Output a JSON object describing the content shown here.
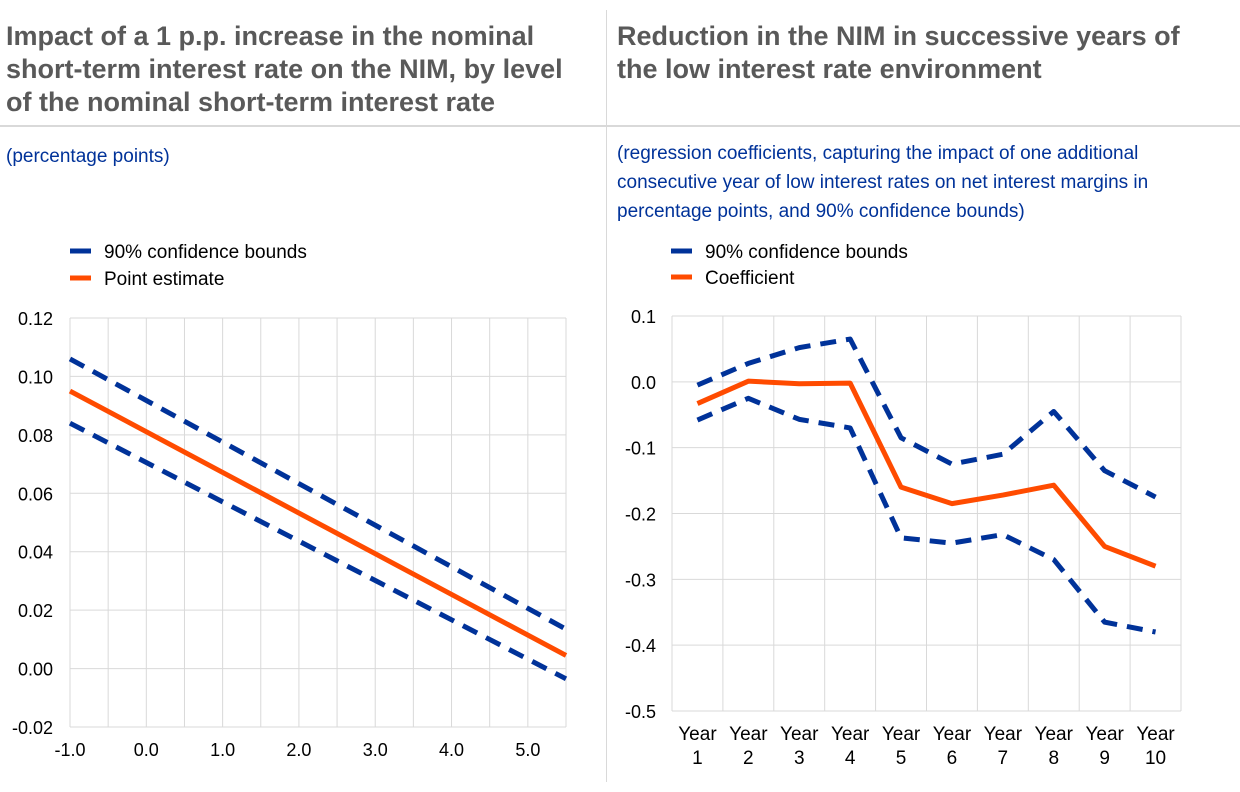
{
  "left_panel": {
    "title": "Impact of a 1 p.p. increase in the nominal short-term interest rate on the NIM, by level of the nominal short-term interest rate",
    "subtitle": "(percentage points)"
  },
  "right_panel": {
    "title": "Reduction in the NIM in successive years of the low interest rate environment",
    "subtitle": "(regression coefficients, capturing the impact of one additional consecutive year of low interest rates on net interest margins in percentage points, and 90% confidence bounds)"
  },
  "colors": {
    "bounds": "#003299",
    "estimate": "#ff4b00",
    "grid": "#d9d9d9"
  },
  "chart_data": [
    {
      "type": "line",
      "xlim": [
        -1.0,
        5.5
      ],
      "ylim": [
        -0.02,
        0.12
      ],
      "x_ticks": [
        "-1.0",
        "0.0",
        "1.0",
        "2.0",
        "3.0",
        "4.0",
        "5.0"
      ],
      "x_tick_values": [
        -1,
        0,
        1,
        2,
        3,
        4,
        5
      ],
      "y_ticks": [
        "0.12",
        "0.10",
        "0.08",
        "0.06",
        "0.04",
        "0.02",
        "0.00",
        "-0.02"
      ],
      "y_tick_values": [
        0.12,
        0.1,
        0.08,
        0.06,
        0.04,
        0.02,
        0.0,
        -0.02
      ],
      "x_gridlines": [
        -1,
        -0.5,
        0,
        0.5,
        1,
        1.5,
        2,
        2.5,
        3,
        3.5,
        4,
        4.5,
        5,
        5.5
      ],
      "grid": true,
      "legend": [
        "90% confidence bounds",
        "Point estimate"
      ],
      "series": [
        {
          "name": "90% confidence bounds",
          "style": "dashed",
          "color": "#003299",
          "x": [
            -1.0,
            5.5
          ],
          "y": [
            0.106,
            0.0135
          ]
        },
        {
          "name": "90% confidence bounds",
          "style": "dashed",
          "color": "#003299",
          "x": [
            -1.0,
            5.5
          ],
          "y": [
            0.084,
            -0.0035
          ]
        },
        {
          "name": "Point estimate",
          "style": "solid",
          "color": "#ff4b00",
          "x": [
            -1.0,
            5.5
          ],
          "y": [
            0.095,
            0.0045
          ]
        }
      ]
    },
    {
      "type": "line",
      "categories": [
        [
          "Year",
          "1"
        ],
        [
          "Year",
          "2"
        ],
        [
          "Year",
          "3"
        ],
        [
          "Year",
          "4"
        ],
        [
          "Year",
          "5"
        ],
        [
          "Year",
          "6"
        ],
        [
          "Year",
          "7"
        ],
        [
          "Year",
          "8"
        ],
        [
          "Year",
          "9"
        ],
        [
          "Year",
          "10"
        ]
      ],
      "ylim": [
        -0.5,
        0.1
      ],
      "y_ticks": [
        "0.1",
        "0.0",
        "-0.1",
        "-0.2",
        "-0.3",
        "-0.4",
        "-0.5"
      ],
      "y_tick_values": [
        0.1,
        0.0,
        -0.1,
        -0.2,
        -0.3,
        -0.4,
        -0.5
      ],
      "grid": true,
      "legend": [
        "90% confidence bounds",
        "Coefficient"
      ],
      "series": [
        {
          "name": "90% confidence bounds",
          "style": "dashed",
          "color": "#003299",
          "values": [
            -0.005,
            0.028,
            0.052,
            0.065,
            -0.085,
            -0.125,
            -0.11,
            -0.045,
            -0.135,
            -0.175
          ]
        },
        {
          "name": "90% confidence bounds",
          "style": "dashed",
          "color": "#003299",
          "values": [
            -0.058,
            -0.025,
            -0.057,
            -0.07,
            -0.237,
            -0.245,
            -0.232,
            -0.27,
            -0.365,
            -0.38
          ]
        },
        {
          "name": "Coefficient",
          "style": "solid",
          "color": "#ff4b00",
          "values": [
            -0.033,
            0.001,
            -0.003,
            -0.002,
            -0.16,
            -0.185,
            -0.172,
            -0.157,
            -0.25,
            -0.28
          ]
        }
      ]
    }
  ]
}
